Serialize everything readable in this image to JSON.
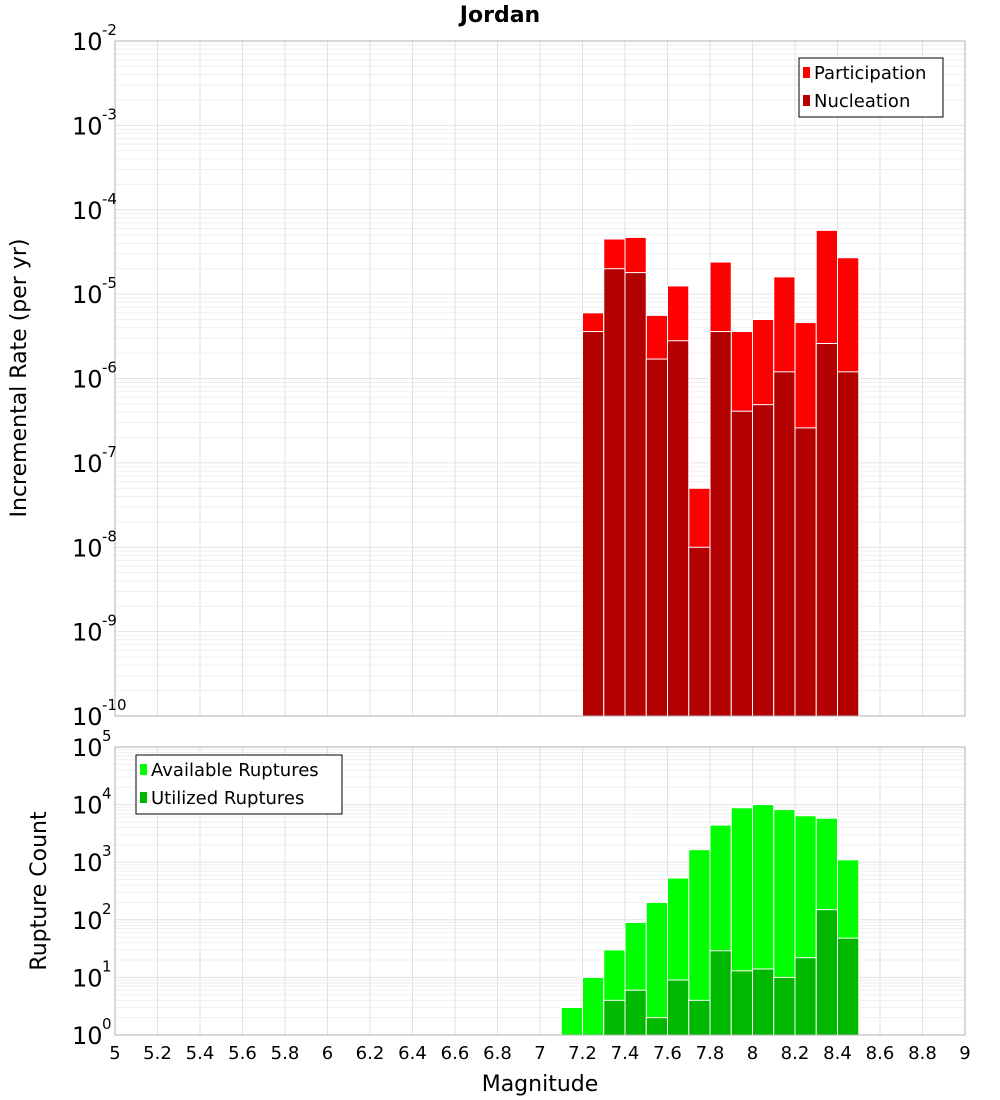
{
  "chart_data": [
    {
      "type": "bar",
      "title": "Jordan",
      "xlabel": "",
      "ylabel": "Incremental Rate (per yr)",
      "yscale": "log",
      "ylim_exponents": [
        -10,
        -2
      ],
      "xlim": [
        5,
        9
      ],
      "bin_width": 0.1,
      "legend_position": "top-right",
      "x": [
        7.25,
        7.35,
        7.45,
        7.55,
        7.65,
        7.75,
        7.85,
        7.95,
        8.05,
        8.15,
        8.25,
        8.35,
        8.45
      ],
      "series": [
        {
          "name": "Participation",
          "color": "#ff0000",
          "values": [
            6e-06,
            4.5e-05,
            4.7e-05,
            5.6e-06,
            1.25e-05,
            5e-08,
            2.4e-05,
            3.6e-06,
            5e-06,
            1.6e-05,
            4.6e-06,
            5.7e-05,
            2.7e-05
          ]
        },
        {
          "name": "Nucleation",
          "color": "#b30000",
          "values": [
            3.6e-06,
            2e-05,
            1.8e-05,
            1.7e-06,
            2.8e-06,
            1e-08,
            3.6e-06,
            4.1e-07,
            4.9e-07,
            1.2e-06,
            2.6e-07,
            2.6e-06,
            1.2e-06
          ]
        }
      ]
    },
    {
      "type": "bar",
      "title": "",
      "xlabel": "Magnitude",
      "ylabel": "Rupture Count",
      "yscale": "log",
      "ylim_exponents": [
        0,
        5
      ],
      "xlim": [
        5,
        9
      ],
      "bin_width": 0.1,
      "legend_position": "top-left",
      "x": [
        7.05,
        7.15,
        7.25,
        7.35,
        7.45,
        7.55,
        7.65,
        7.75,
        7.85,
        7.95,
        8.05,
        8.15,
        8.25,
        8.35,
        8.45
      ],
      "series": [
        {
          "name": "Available Ruptures",
          "color": "#00ff00",
          "values": [
            1,
            3,
            10,
            30,
            90,
            200,
            530,
            1650,
            4400,
            8800,
            10000,
            8200,
            6400,
            5800,
            1100
          ]
        },
        {
          "name": "Utilized Ruptures",
          "color": "#00b800",
          "values": [
            0,
            0,
            1,
            4,
            6,
            2,
            9,
            4,
            29,
            13,
            14,
            10,
            22,
            150,
            48
          ]
        }
      ]
    }
  ],
  "x_tick_labels": [
    "5",
    "5.2",
    "5.4",
    "5.6",
    "5.8",
    "6",
    "6.2",
    "6.4",
    "6.6",
    "6.8",
    "7",
    "7.2",
    "7.4",
    "7.6",
    "7.8",
    "8",
    "8.2",
    "8.4",
    "8.6",
    "8.8",
    "9"
  ],
  "x_tick_values": [
    5,
    5.2,
    5.4,
    5.6,
    5.8,
    6,
    6.2,
    6.4,
    6.6,
    6.8,
    7,
    7.2,
    7.4,
    7.6,
    7.8,
    8,
    8.2,
    8.4,
    8.6,
    8.8,
    9
  ]
}
